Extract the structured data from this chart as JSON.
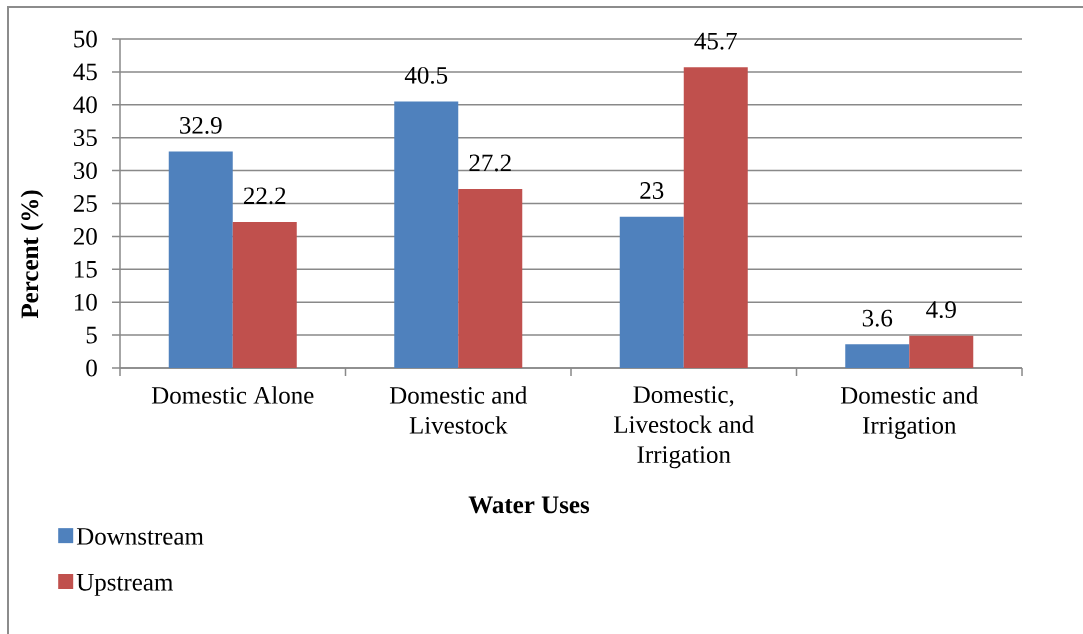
{
  "chart_data": {
    "type": "bar",
    "xlabel": "Water Uses",
    "ylabel": "Percent (%)",
    "categories": [
      "Domestic Alone",
      "Domestic and Livestock",
      "Domestic, Livestock and Irrigation",
      "Domestic and Irrigation"
    ],
    "series": [
      {
        "name": "Downstream",
        "color": "#4f81bd",
        "values": [
          32.9,
          40.5,
          23,
          3.6
        ]
      },
      {
        "name": "Upstream",
        "color": "#c0504d",
        "values": [
          22.2,
          27.2,
          45.7,
          4.9
        ]
      }
    ],
    "ylim": [
      0,
      50
    ],
    "yticks": [
      0,
      5,
      10,
      15,
      20,
      25,
      30,
      35,
      40,
      45,
      50
    ],
    "grid": "y",
    "legend": "bottom left",
    "data_labels": true
  }
}
